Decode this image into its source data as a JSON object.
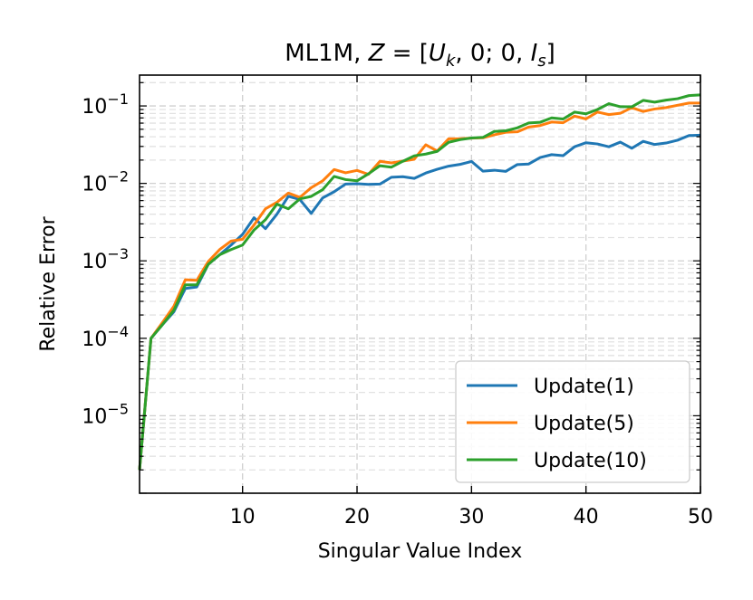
{
  "chart_data": {
    "type": "line",
    "title_prefix": "ML1M, ",
    "title_math": "Z = [U_k, 0; 0, I_s]",
    "xlabel": "Singular Value Index",
    "ylabel": "Relative Error",
    "yscale": "log",
    "xlim": [
      1,
      50
    ],
    "ylim": [
      1e-06,
      0.25
    ],
    "xticks": [
      10,
      20,
      30,
      40,
      50
    ],
    "yticks": [
      1e-05,
      0.0001,
      0.001,
      0.01,
      0.1
    ],
    "ytick_labels": [
      {
        "base": "10",
        "exp": "−5"
      },
      {
        "base": "10",
        "exp": "−4"
      },
      {
        "base": "10",
        "exp": "−3"
      },
      {
        "base": "10",
        "exp": "−2"
      },
      {
        "base": "10",
        "exp": "−1"
      }
    ],
    "grid": true,
    "legend_position": "lower-right",
    "x": [
      1,
      2,
      3,
      4,
      5,
      6,
      7,
      8,
      9,
      10,
      11,
      12,
      13,
      14,
      15,
      16,
      17,
      18,
      19,
      20,
      21,
      22,
      23,
      24,
      25,
      26,
      27,
      28,
      29,
      30,
      31,
      32,
      33,
      34,
      35,
      36,
      37,
      38,
      39,
      40,
      41,
      42,
      43,
      44,
      45,
      46,
      47,
      48,
      49,
      50
    ],
    "series": [
      {
        "name": "Update(1)",
        "color": "#1f77b4",
        "values": [
          2e-06,
          0.0001,
          0.00015,
          0.00022,
          0.00044,
          0.00046,
          0.0009,
          0.0012,
          0.0016,
          0.0022,
          0.0036,
          0.0026,
          0.004,
          0.0068,
          0.0062,
          0.0041,
          0.0065,
          0.0078,
          0.0098,
          0.0099,
          0.0097,
          0.0098,
          0.012,
          0.0122,
          0.0116,
          0.0136,
          0.0152,
          0.0167,
          0.0176,
          0.0192,
          0.0144,
          0.0148,
          0.0143,
          0.0175,
          0.0178,
          0.0216,
          0.0235,
          0.0228,
          0.0297,
          0.0335,
          0.0323,
          0.0297,
          0.0341,
          0.0284,
          0.0349,
          0.0318,
          0.0332,
          0.0361,
          0.0415,
          0.0419
        ]
      },
      {
        "name": "Update(5)",
        "color": "#ff7f0e",
        "values": [
          2e-06,
          0.0001,
          0.00016,
          0.00026,
          0.00057,
          0.00056,
          0.00098,
          0.0014,
          0.0018,
          0.0019,
          0.0029,
          0.0047,
          0.0057,
          0.0075,
          0.0066,
          0.0088,
          0.0108,
          0.0151,
          0.0137,
          0.0147,
          0.0131,
          0.0193,
          0.0184,
          0.0194,
          0.0205,
          0.0315,
          0.0262,
          0.0376,
          0.0377,
          0.0384,
          0.0388,
          0.0424,
          0.0457,
          0.0463,
          0.0534,
          0.0558,
          0.0621,
          0.0607,
          0.0739,
          0.068,
          0.0834,
          0.0773,
          0.0804,
          0.0951,
          0.0849,
          0.0913,
          0.0953,
          0.102,
          0.109,
          0.109
        ]
      },
      {
        "name": "Update(10)",
        "color": "#2ca02c",
        "values": [
          2e-06,
          0.0001,
          0.00015,
          0.00023,
          0.00049,
          0.00049,
          0.0009,
          0.0012,
          0.0014,
          0.0016,
          0.0025,
          0.0034,
          0.0054,
          0.0047,
          0.0063,
          0.0068,
          0.0083,
          0.0123,
          0.0112,
          0.0108,
          0.0133,
          0.0169,
          0.0162,
          0.0193,
          0.0227,
          0.0239,
          0.0259,
          0.0339,
          0.0367,
          0.0385,
          0.0393,
          0.0469,
          0.0478,
          0.0521,
          0.0603,
          0.0616,
          0.0701,
          0.0678,
          0.0832,
          0.0792,
          0.0899,
          0.107,
          0.0977,
          0.0974,
          0.118,
          0.112,
          0.119,
          0.124,
          0.136,
          0.139
        ]
      }
    ]
  }
}
